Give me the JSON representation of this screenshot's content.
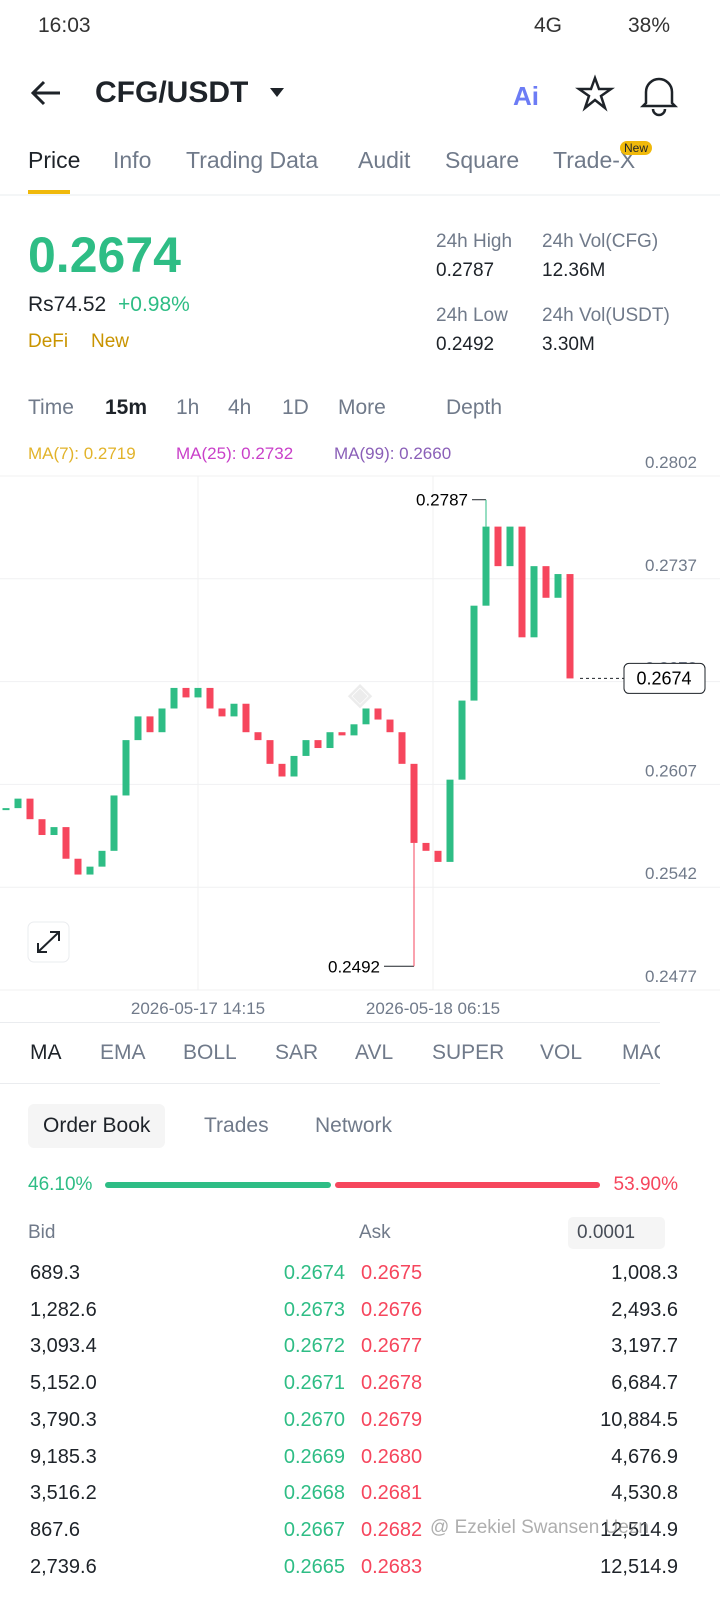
{
  "status": {
    "time": "16:03",
    "network": "4G",
    "battery": "38%"
  },
  "header": {
    "pair": "CFG/USDT"
  },
  "tabs": {
    "items": [
      "Price",
      "Info",
      "Trading Data",
      "Audit",
      "Square",
      "Trade-X"
    ],
    "badge": "New"
  },
  "ticker": {
    "price": "0.2674",
    "fiat": "Rs74.52",
    "change": "+0.98%",
    "tags": [
      "DeFi",
      "New"
    ],
    "stats": [
      {
        "label": "24h High",
        "value": "0.2787"
      },
      {
        "label": "24h Vol(CFG)",
        "value": "12.36M"
      },
      {
        "label": "24h Low",
        "value": "0.2492"
      },
      {
        "label": "24h Vol(USDT)",
        "value": "3.30M"
      }
    ]
  },
  "intervals": [
    "Time",
    "15m",
    "1h",
    "4h",
    "1D",
    "More",
    "Depth"
  ],
  "ma_legend": [
    "MA(7): 0.2719",
    "MA(25): 0.2732",
    "MA(99): 0.2660"
  ],
  "chart_data": {
    "type": "candlestick",
    "ylim": [
      0.2477,
      0.2802
    ],
    "yticks": [
      0.2802,
      0.2737,
      0.2672,
      0.2607,
      0.2542,
      0.2477
    ],
    "closes": [
      0.2592,
      0.2598,
      0.2585,
      0.2575,
      0.258,
      0.256,
      0.255,
      0.2555,
      0.2565,
      0.26,
      0.2635,
      0.265,
      0.264,
      0.2655,
      0.2668,
      0.2662,
      0.2668,
      0.2655,
      0.265,
      0.2658,
      0.264,
      0.2635,
      0.262,
      0.2612,
      0.2625,
      0.2635,
      0.263,
      0.264,
      0.2638,
      0.2645,
      0.2655,
      0.2648,
      0.264,
      0.262,
      0.257,
      0.2565,
      0.2558,
      0.261,
      0.266,
      0.272,
      0.277,
      0.2745,
      0.277,
      0.27,
      0.2745,
      0.2725,
      0.274,
      0.2674
    ],
    "high": 0.2787,
    "low": 0.2492,
    "last": 0.2674,
    "x_labels": [
      "2026-05-17 14:15",
      "2026-05-18 06:15"
    ]
  },
  "indicators": [
    "MA",
    "EMA",
    "BOLL",
    "SAR",
    "AVL",
    "SUPER",
    "VOL",
    "MACD"
  ],
  "orderbook": {
    "tabs": [
      "Order Book",
      "Trades",
      "Network"
    ],
    "bid_ratio": "46.10%",
    "ask_ratio": "53.90%",
    "headers": [
      "Bid",
      "Ask"
    ],
    "precision": "0.0001",
    "rows": [
      [
        "689.3",
        "0.2674",
        "0.2675",
        "1,008.3"
      ],
      [
        "1,282.6",
        "0.2673",
        "0.2676",
        "2,493.6"
      ],
      [
        "3,093.4",
        "0.2672",
        "0.2677",
        "3,197.7"
      ],
      [
        "5,152.0",
        "0.2671",
        "0.2678",
        "6,684.7"
      ],
      [
        "3,790.3",
        "0.2670",
        "0.2679",
        "10,884.5"
      ],
      [
        "9,185.3",
        "0.2669",
        "0.2680",
        "4,676.9"
      ],
      [
        "3,516.2",
        "0.2668",
        "0.2681",
        "4,530.8"
      ],
      [
        "867.6",
        "0.2667",
        "0.2682",
        "12,514.9"
      ],
      [
        "2,739.6",
        "0.2665",
        "0.2683",
        "12,514.9"
      ]
    ]
  },
  "watermark": "@ Ezekiel Swansen Uezn"
}
